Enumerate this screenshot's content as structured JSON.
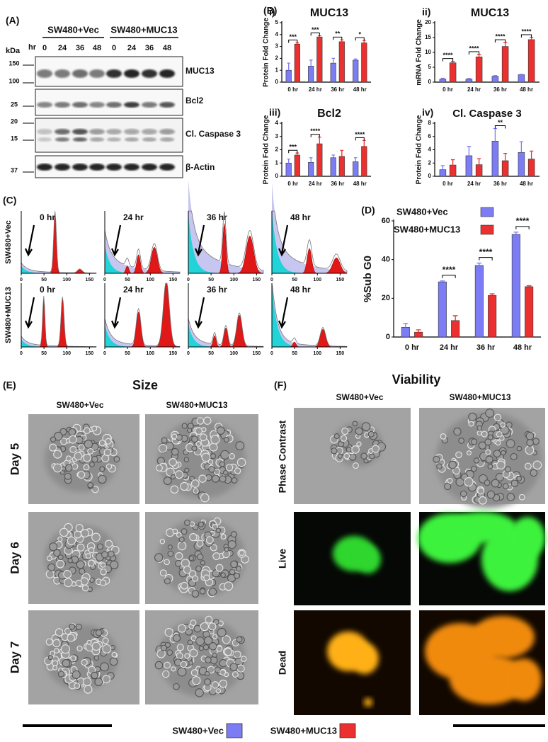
{
  "figure": {
    "A": {
      "label": "(A)",
      "groups": [
        "SW480+Vec",
        "SW480+MUC13"
      ],
      "time_unit": "hr",
      "times": [
        "0",
        "24",
        "36",
        "48",
        "0",
        "24",
        "36",
        "48"
      ],
      "kda": "kDa",
      "markers": [
        "150",
        "100",
        "25",
        "20",
        "15",
        "37"
      ],
      "proteins": [
        "MUC13",
        "Bcl2",
        "Cl. Caspase 3",
        "β-Actin"
      ]
    },
    "B": {
      "label": "(B)"
    },
    "C": {
      "label": "(C)",
      "rows": [
        "SW480+Vec",
        "SW480+MUC13"
      ],
      "times": [
        "0 hr",
        "24 hr",
        "36 hr",
        "48 hr"
      ],
      "xlim": [
        0,
        165
      ],
      "xticks": [
        0,
        50,
        100,
        150
      ]
    },
    "E": {
      "label": "(E)",
      "title": "Size",
      "columns": [
        "SW480+Vec",
        "SW480+MUC13"
      ],
      "rows": [
        "Day 5",
        "Day 6",
        "Day 7"
      ]
    },
    "F": {
      "label": "(F)",
      "title": "Viability",
      "columns": [
        "SW480+Vec",
        "SW480+MUC13"
      ],
      "rows": [
        "Phase Contrast",
        "Live",
        "Dead"
      ]
    },
    "legend": [
      {
        "name": "SW480+Vec",
        "color": "#7c7cf4"
      },
      {
        "name": "SW480+MUC13",
        "color": "#ec2f2f"
      }
    ]
  },
  "chart_data": [
    {
      "type": "bar",
      "panel": "i)",
      "title": "MUC13",
      "ylabel": "Protein Fold Change",
      "categories": [
        "0 hr",
        "24 hr",
        "36 hr",
        "48 hr"
      ],
      "series": [
        {
          "color": "#7c7cf4",
          "values": [
            1.0,
            1.35,
            1.6,
            1.85
          ],
          "errors": [
            0.6,
            0.5,
            0.4,
            0.1
          ]
        },
        {
          "color": "#ec2f2f",
          "values": [
            3.2,
            3.8,
            3.4,
            3.3
          ],
          "errors": [
            0.1,
            0.1,
            0.15,
            0.2
          ]
        }
      ],
      "ylim": [
        0,
        5
      ],
      "yticks": [
        0,
        1,
        2,
        3,
        4,
        5
      ],
      "significance": [
        "***",
        "***",
        "**",
        "*"
      ]
    },
    {
      "type": "bar",
      "panel": "ii)",
      "title": "MUC13",
      "ylabel": "mRNA Fold Change",
      "categories": [
        "0 hr",
        "24 hr",
        "36 hr",
        "48 hr"
      ],
      "series": [
        {
          "color": "#7c7cf4",
          "values": [
            1.0,
            1.0,
            2.0,
            2.5
          ],
          "errors": [
            0.3,
            0.2,
            0.2,
            0.1
          ]
        },
        {
          "color": "#ec2f2f",
          "values": [
            6.5,
            8.5,
            12,
            14.3
          ],
          "errors": [
            0.5,
            0.8,
            1.3,
            0.7
          ]
        }
      ],
      "ylim": [
        0,
        20
      ],
      "yticks": [
        0,
        5,
        10,
        15,
        20
      ],
      "significance": [
        "****",
        "****",
        "****",
        "****"
      ]
    },
    {
      "type": "bar",
      "panel": "iii)",
      "title": "Bcl2",
      "ylabel": "Protein Fold Change",
      "categories": [
        "0 hr",
        "24 hr",
        "36 hr",
        "48 hr"
      ],
      "series": [
        {
          "color": "#7c7cf4",
          "values": [
            1.0,
            1.05,
            1.4,
            1.1
          ],
          "errors": [
            0.3,
            0.35,
            0.2,
            0.3
          ]
        },
        {
          "color": "#ec2f2f",
          "values": [
            1.6,
            2.45,
            1.5,
            2.25
          ],
          "errors": [
            0.15,
            0.5,
            0.45,
            0.45
          ]
        }
      ],
      "ylim": [
        0,
        4
      ],
      "yticks": [
        0,
        1,
        2,
        3,
        4
      ],
      "significance": [
        "***",
        "****",
        null,
        "****"
      ]
    },
    {
      "type": "bar",
      "panel": "iv)",
      "title": "Cl. Caspase 3",
      "ylabel": "Protein Fold Change",
      "categories": [
        "0 hr",
        "24 hr",
        "36 hr",
        "48 hr"
      ],
      "series": [
        {
          "color": "#7c7cf4",
          "values": [
            1.0,
            3.1,
            5.3,
            3.6
          ],
          "errors": [
            0.6,
            1.4,
            1.9,
            1.6
          ]
        },
        {
          "color": "#ec2f2f",
          "values": [
            1.7,
            1.75,
            2.35,
            2.6
          ],
          "errors": [
            0.8,
            0.9,
            1.1,
            1.2
          ]
        }
      ],
      "ylim": [
        0,
        8
      ],
      "yticks": [
        0,
        2,
        4,
        6,
        8
      ],
      "significance": [
        null,
        null,
        "**",
        null
      ]
    },
    {
      "type": "bar",
      "panel": "(D)",
      "ylabel": "%Sub G0",
      "categories": [
        "0 hr",
        "24 hr",
        "36 hr",
        "48 hr"
      ],
      "series": [
        {
          "name": "SW480+Vec",
          "color": "#7c7cf4",
          "values": [
            5,
            28.5,
            37,
            53
          ],
          "errors": [
            2,
            0.5,
            1.2,
            1.2
          ]
        },
        {
          "name": "SW480+MUC13",
          "color": "#ec2f2f",
          "values": [
            2.5,
            8.5,
            21.5,
            26
          ],
          "errors": [
            1.2,
            2.5,
            0.8,
            0.5
          ]
        }
      ],
      "ylim": [
        0,
        60
      ],
      "yticks": [
        0,
        20,
        40,
        60
      ],
      "significance": [
        null,
        "****",
        "****",
        "****"
      ],
      "legend": "upper left"
    }
  ]
}
